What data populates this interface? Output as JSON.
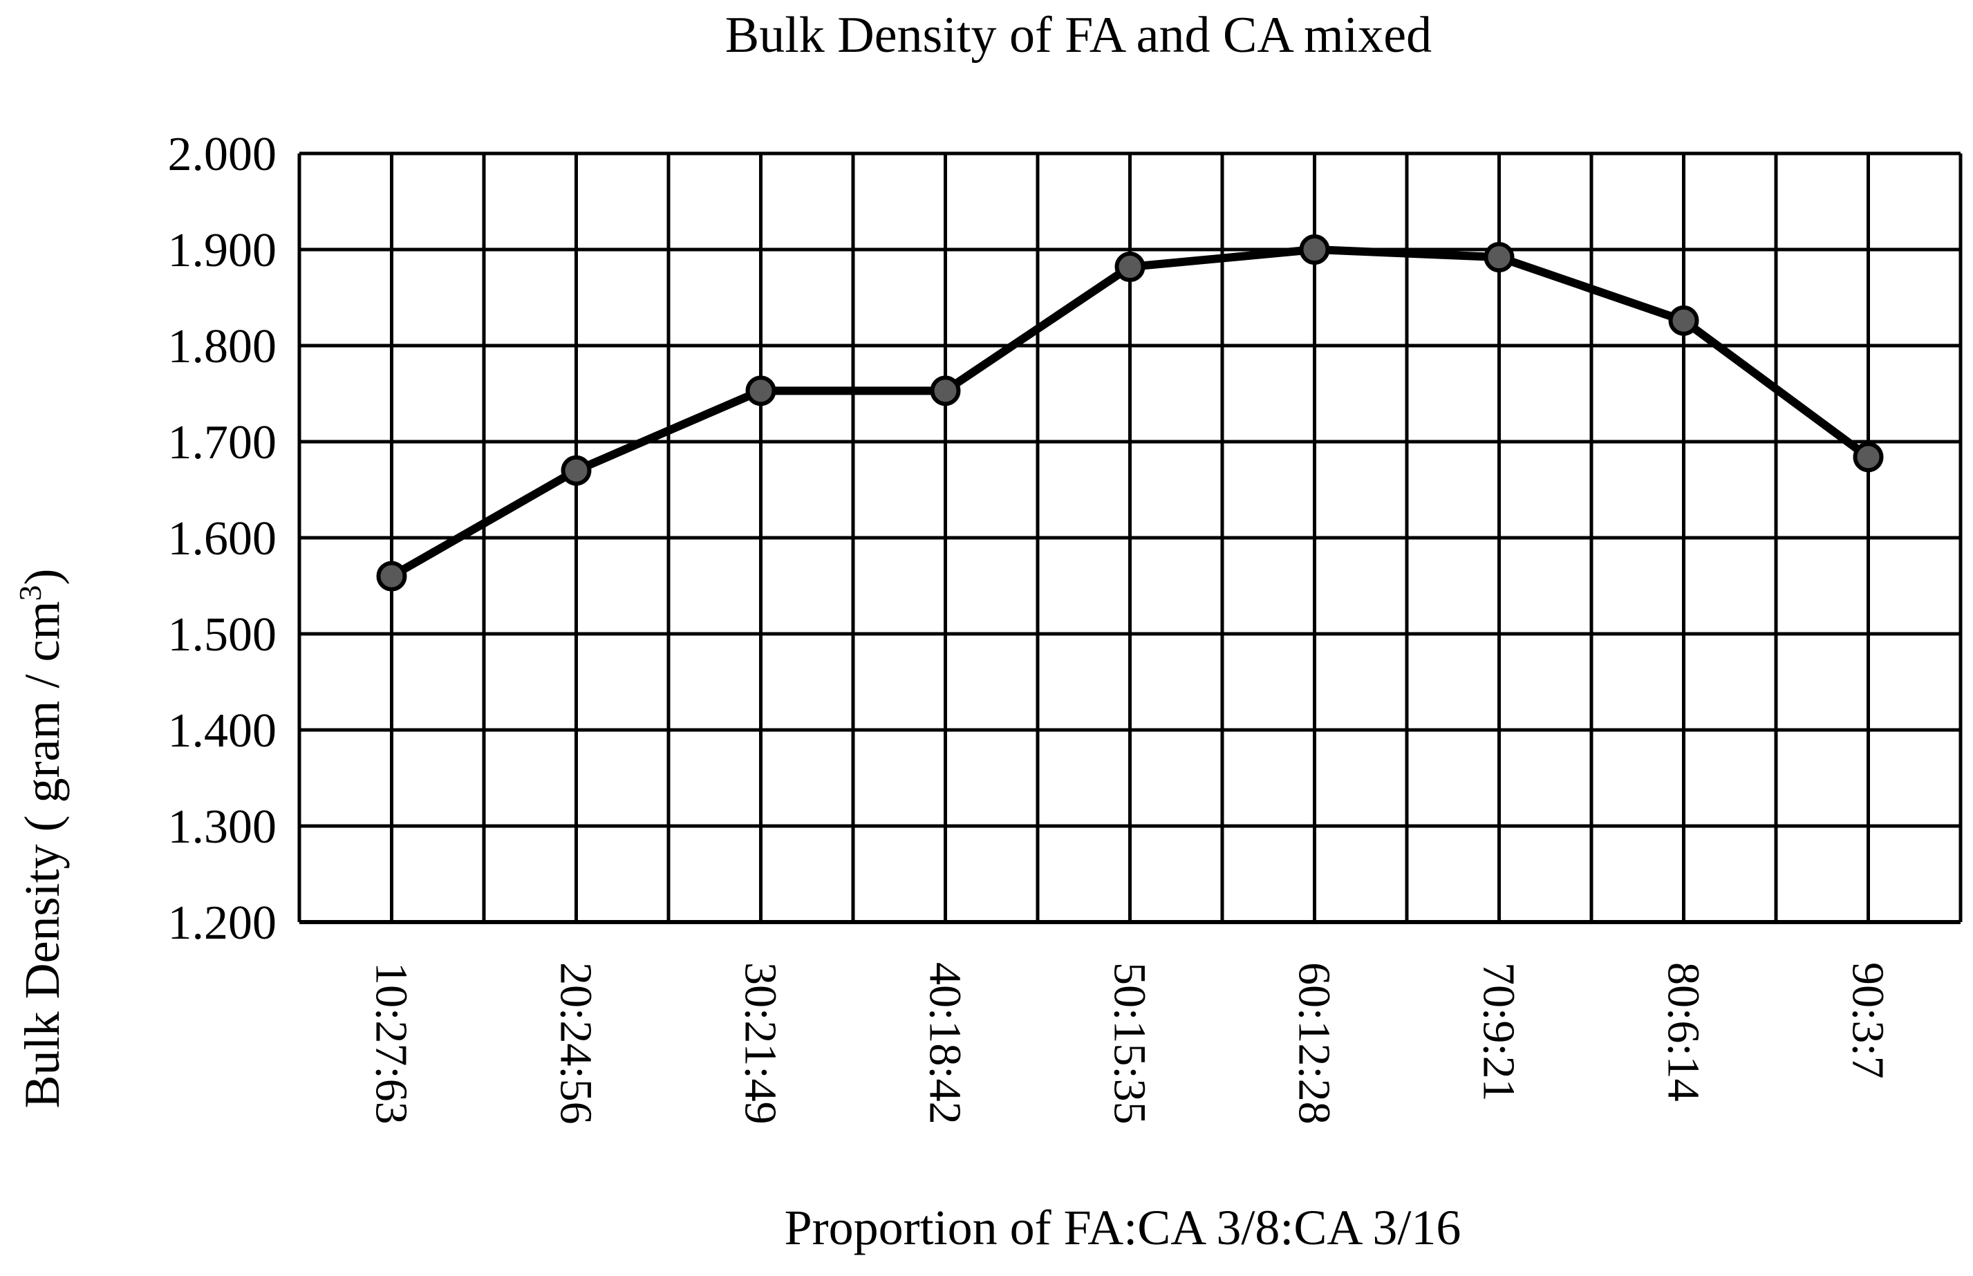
{
  "chart_data": {
    "type": "line",
    "title": "Bulk Density of FA and CA mixed",
    "xlabel": "Proportion of FA:CA 3/8:CA 3/16",
    "ylabel": "Bulk Density ( gram / cm",
    "ylabel_superscript": "3",
    "ylabel_close": ")",
    "categories": [
      "10:27:63",
      "20:24:56",
      "30:21:49",
      "40:18:42",
      "50:15:35",
      "60:12:28",
      "70:9:21",
      "80:6:14",
      "90:3:7"
    ],
    "values": [
      1.56,
      1.67,
      1.753,
      1.753,
      1.882,
      1.9,
      1.892,
      1.826,
      1.684
    ],
    "ylim": [
      1.2,
      2.0
    ],
    "yticks": [
      "1.200",
      "1.300",
      "1.400",
      "1.500",
      "1.600",
      "1.700",
      "1.800",
      "1.900",
      "2.000"
    ],
    "grid": true,
    "legend": "none",
    "colors": {
      "line": "#000000",
      "marker_fill": "#595959",
      "grid": "#000000"
    }
  }
}
